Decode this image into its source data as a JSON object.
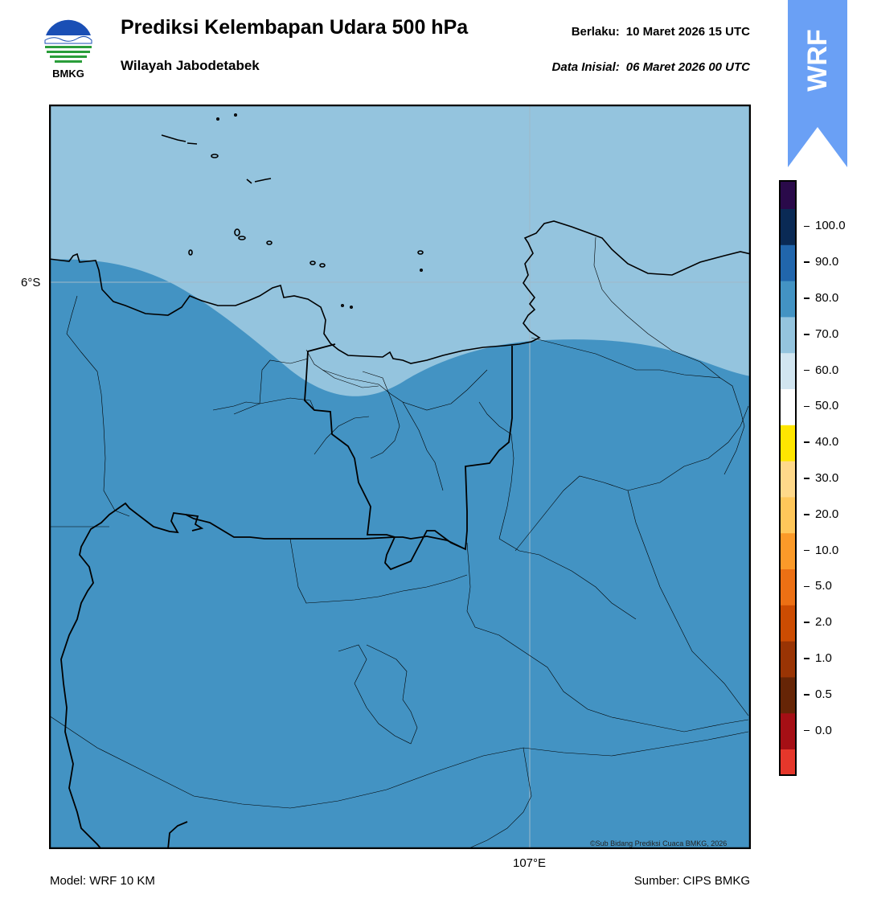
{
  "header": {
    "title": "Prediksi Kelembapan Udara 500 hPa",
    "subtitle": "Wilayah Jabodetabek",
    "valid_key": "Berlaku:",
    "valid_value": "10 Maret 2026 15 UTC",
    "init_key": "Data Inisial:",
    "init_value": "06 Maret 2026 00 UTC"
  },
  "logo": {
    "icon": "bmkg-logo",
    "text": "BMKG"
  },
  "badge": {
    "text": "WRF",
    "color": "#6aa0f5"
  },
  "map": {
    "lat_label": "6°S",
    "lon_label": "107°E",
    "credit": "©Sub Bidang Prediksi Cuaca BMKG, 2026",
    "field_colors": {
      "60-70": "#94c4de",
      "70-80": "#4393c3"
    }
  },
  "colorbar": {
    "labels": [
      "100.0",
      "90.0",
      "80.0",
      "70.0",
      "60.0",
      "50.0",
      "40.0",
      "30.0",
      "20.0",
      "10.0",
      "5.0",
      "2.0",
      "1.0",
      "0.5",
      "0.0"
    ],
    "colors_top_to_bottom": [
      "#2a0a4a",
      "#0a2a55",
      "#2166ac",
      "#4393c3",
      "#94c4de",
      "#d1e5f0",
      "#ffffff",
      "#ffe600",
      "#ffd98a",
      "#ffc75a",
      "#fb9a29",
      "#ec7014",
      "#cc4c02",
      "#993404",
      "#662506",
      "#a50f15",
      "#e5372b"
    ]
  },
  "footer": {
    "model": "Model: WRF 10 KM",
    "source": "Sumber: CIPS BMKG"
  }
}
